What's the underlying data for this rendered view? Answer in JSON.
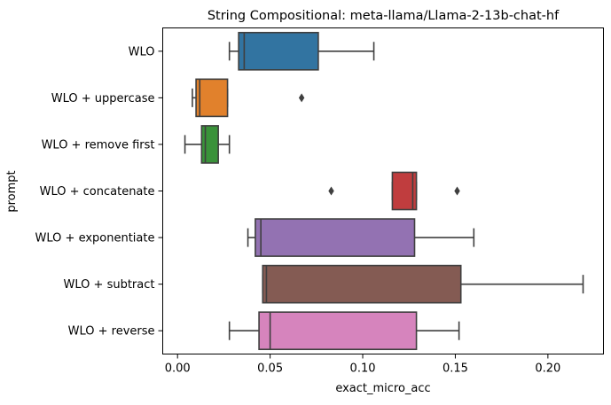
{
  "chart_data": {
    "type": "box",
    "orientation": "horizontal",
    "title": "String Compositional: meta-llama/Llama-2-13b-chat-hf",
    "xlabel": "exact_micro_acc",
    "ylabel": "prompt",
    "xlim": [
      -0.008,
      0.23
    ],
    "xticks": [
      0.0,
      0.05,
      0.1,
      0.15,
      0.2
    ],
    "xtick_labels": [
      "0.00",
      "0.05",
      "0.10",
      "0.15",
      "0.20"
    ],
    "grid": false,
    "categories": [
      "WLO",
      "WLO + uppercase",
      "WLO + remove first",
      "WLO + concatenate",
      "WLO + exponentiate",
      "WLO + subtract",
      "WLO + reverse"
    ],
    "boxes": [
      {
        "label": "WLO",
        "color": "#3274a1",
        "whisker_low": 0.028,
        "q1": 0.033,
        "median": 0.036,
        "q3": 0.076,
        "whisker_high": 0.106,
        "outliers": []
      },
      {
        "label": "WLO + uppercase",
        "color": "#e1812c",
        "whisker_low": 0.008,
        "q1": 0.01,
        "median": 0.012,
        "q3": 0.027,
        "whisker_high": 0.027,
        "outliers": [
          0.067
        ]
      },
      {
        "label": "WLO + remove first",
        "color": "#3a923a",
        "whisker_low": 0.004,
        "q1": 0.013,
        "median": 0.015,
        "q3": 0.022,
        "whisker_high": 0.028,
        "outliers": []
      },
      {
        "label": "WLO + concatenate",
        "color": "#c03d3e",
        "whisker_low": 0.116,
        "q1": 0.116,
        "median": 0.127,
        "q3": 0.129,
        "whisker_high": 0.129,
        "outliers": [
          0.083,
          0.151
        ]
      },
      {
        "label": "WLO + exponentiate",
        "color": "#9372b2",
        "whisker_low": 0.038,
        "q1": 0.042,
        "median": 0.045,
        "q3": 0.128,
        "whisker_high": 0.16,
        "outliers": []
      },
      {
        "label": "WLO + subtract",
        "color": "#845b53",
        "whisker_low": 0.046,
        "q1": 0.046,
        "median": 0.048,
        "q3": 0.153,
        "whisker_high": 0.219,
        "outliers": []
      },
      {
        "label": "WLO + reverse",
        "color": "#d684bd",
        "whisker_low": 0.028,
        "q1": 0.044,
        "median": 0.05,
        "q3": 0.129,
        "whisker_high": 0.152,
        "outliers": []
      }
    ]
  }
}
